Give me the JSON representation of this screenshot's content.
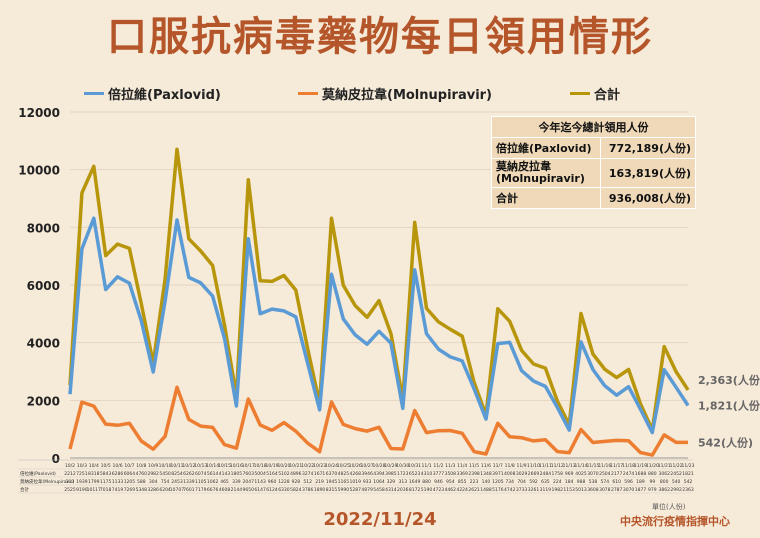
{
  "title": "口服抗病毒藥物每日領用情形",
  "footer": {
    "date": "2022/11/24",
    "unit": "單位(人份)",
    "source": "中央流行疫情指揮中心"
  },
  "colors": {
    "pax": "#5b9bd5",
    "mol": "#ed7d31",
    "total": "#b8960c",
    "accent": "#b5562a"
  },
  "summary": {
    "heading": "今年迄今總計領用人份",
    "rows": [
      {
        "label": "倍拉維(Paxlovid)",
        "value": "772,189(人份)"
      },
      {
        "label": "莫納皮拉韋\n(Molnupiravir)",
        "value": "163,819(人份)"
      },
      {
        "label": "合計",
        "value": "936,008(人份)"
      }
    ]
  },
  "chart_data": {
    "type": "line",
    "ylim": [
      0,
      12000
    ],
    "yticks": [
      0,
      2000,
      4000,
      6000,
      8000,
      10000,
      12000
    ],
    "x": [
      "10/2",
      "10/3",
      "10/4",
      "10/5",
      "10/6",
      "10/7",
      "10/8",
      "10/9",
      "10/10",
      "10/11",
      "10/12",
      "10/13",
      "10/14",
      "10/15",
      "10/16",
      "10/17",
      "10/18",
      "10/19",
      "10/20",
      "10/21",
      "10/22",
      "10/23",
      "10/24",
      "10/25",
      "10/26",
      "10/27",
      "10/28",
      "10/29",
      "10/30",
      "10/31",
      "11/1",
      "11/2",
      "11/3",
      "11/4",
      "11/5",
      "11/6",
      "11/7",
      "11/8",
      "11/9",
      "11/10",
      "11/11",
      "11/12",
      "11/13",
      "11/14",
      "11/15",
      "11/16",
      "11/17",
      "11/18",
      "11/19",
      "11/20",
      "11/21",
      "11/22",
      "11/23"
    ],
    "series": [
      {
        "name": "倍拉維(Paxlovid)",
        "values": [
          2212,
          7251,
          8318,
          5843,
          6286,
          6064,
          4760,
          2982,
          5450,
          8254,
          6262,
          6074,
          5614,
          4143,
          1805,
          7603,
          5004,
          5164,
          5102,
          4896,
          3274,
          1671,
          6370,
          4825,
          4268,
          3946,
          4394,
          3985,
          1723,
          6523,
          4310,
          3777,
          3508,
          3369,
          2398,
          1348,
          3971,
          4008,
          3029,
          2669,
          2484,
          1758,
          969,
          4025,
          3070,
          2504,
          2177,
          2474,
          1688,
          880,
          3062,
          2452,
          1821
        ]
      },
      {
        "name": "莫納皮拉韋(Molnupiravir)",
        "values": [
          313,
          1939,
          1799,
          1175,
          1133,
          1205,
          588,
          304,
          754,
          2453,
          1339,
          1105,
          1062,
          465,
          339,
          2047,
          1143,
          960,
          1228,
          928,
          512,
          219,
          1945,
          1165,
          1019,
          933,
          1064,
          329,
          313,
          1649,
          880,
          946,
          954,
          855,
          223,
          140,
          1205,
          734,
          704,
          592,
          635,
          224,
          184,
          988,
          538,
          574,
          610,
          596,
          189,
          99,
          800,
          540,
          542
        ]
      },
      {
        "name": "合計",
        "values": [
          2525,
          9190,
          10117,
          7018,
          7419,
          7269,
          5348,
          3286,
          6204,
          10707,
          7601,
          7179,
          6676,
          4608,
          2144,
          9650,
          6147,
          6124,
          6330,
          5824,
          3786,
          1890,
          8315,
          5990,
          5287,
          4879,
          5458,
          4314,
          2036,
          8172,
          5190,
          4723,
          4462,
          4224,
          2621,
          1488,
          5176,
          4742,
          3733,
          3261,
          3119,
          1982,
          1153,
          5013,
          3608,
          3078,
          2787,
          3070,
          1877,
          979,
          3862,
          2992,
          2363
        ]
      }
    ],
    "end_labels": [
      "1,821(人份)",
      "542(人份)",
      "2,363(人份)"
    ],
    "table_row_labels": [
      "倍拉維(Paxlovid)",
      "莫納皮拉韋(Molnupiravir)",
      "合計"
    ]
  }
}
